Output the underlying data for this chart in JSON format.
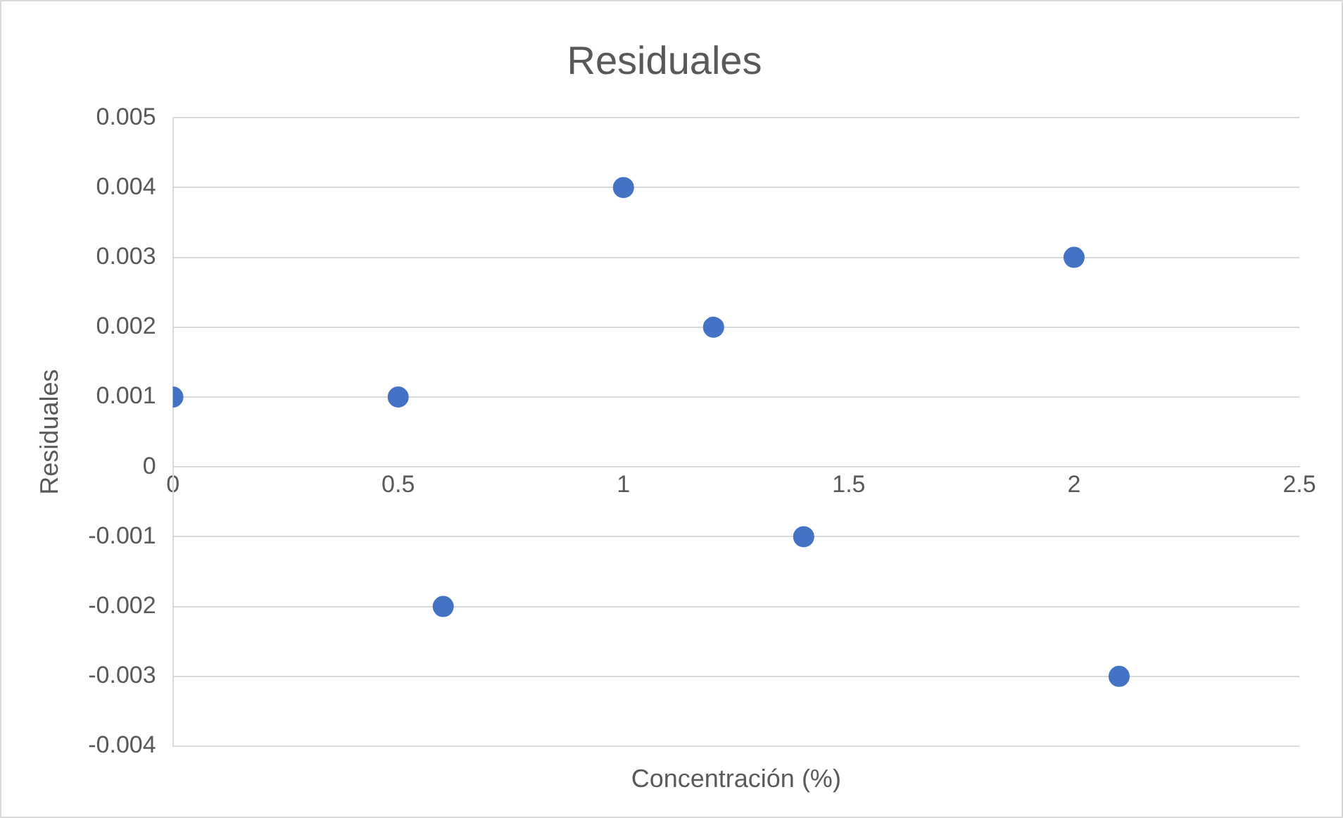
{
  "chart_data": {
    "type": "scatter",
    "title": "Residuales",
    "xlabel": "Concentración (%)",
    "ylabel": "Residuales",
    "x": [
      0,
      0.5,
      0.6,
      1,
      1.2,
      1.4,
      2,
      2.1
    ],
    "series": [
      {
        "color": "#4472c4",
        "values": [
          0.001,
          0.001,
          -0.002,
          0.004,
          0.002,
          -0.001,
          0.003,
          -0.003
        ]
      }
    ],
    "xlim": [
      0,
      2.5
    ],
    "xticks": [
      0,
      0.5,
      1,
      1.5,
      2,
      2.5
    ],
    "ylim": [
      -0.004,
      0.005
    ],
    "yticks": [
      -0.004,
      -0.003,
      -0.002,
      -0.001,
      0,
      0.001,
      0.002,
      0.003,
      0.004,
      0.005
    ],
    "grid": "y",
    "marker": "circle"
  }
}
